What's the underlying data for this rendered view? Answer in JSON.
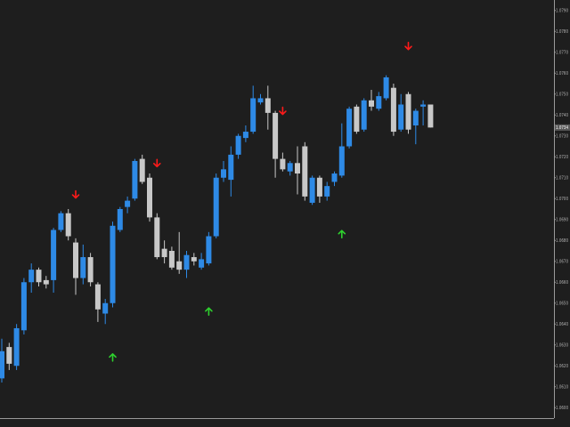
{
  "chart_data": {
    "type": "candlestick",
    "open": [
      1.0614,
      1.0629,
      1.062,
      1.0637,
      1.066,
      1.0666,
      1.0661,
      1.0661,
      1.0685,
      1.0693,
      1.0679,
      1.0662,
      1.0672,
      1.0659,
      1.0645,
      1.065,
      1.0685,
      1.0696,
      1.07,
      1.0719,
      1.071,
      1.0691,
      1.0676,
      1.0675,
      1.067,
      1.0666,
      1.0672,
      1.0667,
      1.0669,
      1.0682,
      1.071,
      1.0709,
      1.0721,
      1.0729,
      1.0732,
      1.0746,
      1.0748,
      1.0741,
      1.0719,
      1.0713,
      1.0717,
      1.0725,
      1.0698,
      1.071,
      1.0701,
      1.0708,
      1.0711,
      1.0725,
      1.0744,
      1.0733,
      1.0747,
      1.0743,
      1.0748,
      1.0753,
      1.0733,
      1.075,
      1.0735,
      1.0744,
      1.0745
    ],
    "high": [
      1.0633,
      1.0631,
      1.064,
      1.0662,
      1.0669,
      1.0667,
      1.0663,
      1.0686,
      1.0694,
      1.0695,
      1.0681,
      1.0678,
      1.0674,
      1.066,
      1.0652,
      1.0689,
      1.0696,
      1.0701,
      1.0719,
      1.0721,
      1.0712,
      1.0693,
      1.068,
      1.0677,
      1.0684,
      1.0675,
      1.0674,
      1.0674,
      1.0684,
      1.0712,
      1.0718,
      1.0725,
      1.0731,
      1.0735,
      1.0754,
      1.075,
      1.0754,
      1.0742,
      1.0722,
      1.0718,
      1.0725,
      1.0727,
      1.0711,
      1.0711,
      1.0708,
      1.0713,
      1.0736,
      1.0744,
      1.0745,
      1.0748,
      1.0752,
      1.0751,
      1.0759,
      1.0755,
      1.075,
      1.0751,
      1.0743,
      1.0747,
      1.0745
    ],
    "low": [
      1.0612,
      1.0618,
      1.0618,
      1.0635,
      1.0655,
      1.0658,
      1.0657,
      1.0655,
      1.0684,
      1.068,
      1.0654,
      1.0659,
      1.0658,
      1.0641,
      1.064,
      1.0648,
      1.0684,
      1.0693,
      1.0699,
      1.0707,
      1.0689,
      1.0671,
      1.0669,
      1.0666,
      1.0664,
      1.0662,
      1.0668,
      1.0666,
      1.0668,
      1.0681,
      1.0708,
      1.0701,
      1.0719,
      1.0727,
      1.0731,
      1.0745,
      1.0733,
      1.071,
      1.0713,
      1.0711,
      1.0702,
      1.0699,
      1.0697,
      1.0698,
      1.0699,
      1.0706,
      1.071,
      1.0724,
      1.0731,
      1.0732,
      1.0742,
      1.0742,
      1.0747,
      1.073,
      1.0732,
      1.0731,
      1.0726,
      1.0735,
      1.0734
    ],
    "close": [
      1.0627,
      1.0621,
      1.0638,
      1.066,
      1.0666,
      1.066,
      1.0659,
      1.0685,
      1.0693,
      1.0682,
      1.0662,
      1.0672,
      1.066,
      1.0647,
      1.065,
      1.0687,
      1.0695,
      1.0699,
      1.0718,
      1.0708,
      1.0691,
      1.0672,
      1.0672,
      1.0667,
      1.0666,
      1.0673,
      1.067,
      1.0671,
      1.0682,
      1.071,
      1.0714,
      1.0721,
      1.073,
      1.0732,
      1.0748,
      1.0748,
      1.0741,
      1.0719,
      1.0714,
      1.0717,
      1.0712,
      1.0701,
      1.071,
      1.0701,
      1.0706,
      1.0712,
      1.0725,
      1.0743,
      1.0732,
      1.0747,
      1.0744,
      1.0749,
      1.0758,
      1.0732,
      1.0745,
      1.0733,
      1.0742,
      1.0745,
      1.0734
    ],
    "up_color": "#2e8ae6",
    "down_color": "#c8c8c8",
    "sell_signals": [
      {
        "at": 10,
        "value": 1.0702
      },
      {
        "at": 21,
        "value": 1.0717
      },
      {
        "at": 38,
        "value": 1.0742
      },
      {
        "at": 55,
        "value": 1.0773
      }
    ],
    "buy_signals": [
      {
        "at": 15,
        "value": 1.0624
      },
      {
        "at": 28,
        "value": 1.0646
      },
      {
        "at": 46,
        "value": 1.0683
      }
    ],
    "sell_color": "#ff1a1a",
    "buy_color": "#2ed12e",
    "ylim": [
      1.0595,
      1.0795
    ],
    "yticks": [
      {
        "value": 1.06,
        "label": "1.0600"
      },
      {
        "value": 1.061,
        "label": "1.0610"
      },
      {
        "value": 1.062,
        "label": "1.0620"
      },
      {
        "value": 1.063,
        "label": "1.0630"
      },
      {
        "value": 1.064,
        "label": "1.0640"
      },
      {
        "value": 1.065,
        "label": "1.0650"
      },
      {
        "value": 1.066,
        "label": "1.0660"
      },
      {
        "value": 1.067,
        "label": "1.0670"
      },
      {
        "value": 1.068,
        "label": "1.0680"
      },
      {
        "value": 1.069,
        "label": "1.0690"
      },
      {
        "value": 1.07,
        "label": "1.0700"
      },
      {
        "value": 1.071,
        "label": "1.0710"
      },
      {
        "value": 1.072,
        "label": "1.0720"
      },
      {
        "value": 1.073,
        "label": "1.0730"
      },
      {
        "value": 1.074,
        "label": "1.0740"
      },
      {
        "value": 1.075,
        "label": "1.0750"
      },
      {
        "value": 1.076,
        "label": "1.0760"
      },
      {
        "value": 1.077,
        "label": "1.0770"
      },
      {
        "value": 1.078,
        "label": "1.0780"
      },
      {
        "value": 1.079,
        "label": "1.0790"
      }
    ],
    "last_price": 1.0734
  }
}
